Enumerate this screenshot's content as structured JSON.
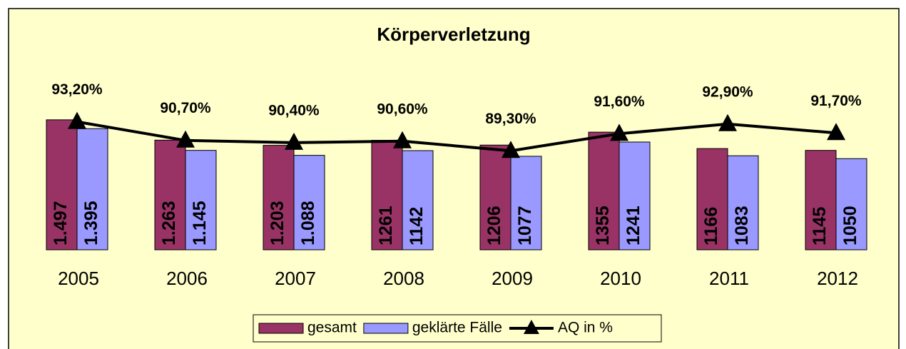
{
  "chart_data": {
    "type": "bar",
    "title": "Körperverletzung",
    "categories": [
      "2005",
      "2006",
      "2007",
      "2008",
      "2009",
      "2010",
      "2011",
      "2012"
    ],
    "series": [
      {
        "name": "gesamt",
        "color": "#993366",
        "values": [
          1497,
          1263,
          1203,
          1261,
          1206,
          1355,
          1166,
          1145
        ],
        "value_labels": [
          "1.497",
          "1.263",
          "1.203",
          "1261",
          "1206",
          "1355",
          "1166",
          "1145"
        ]
      },
      {
        "name": "geklärte Fälle",
        "color": "#9999ff",
        "values": [
          1395,
          1145,
          1088,
          1142,
          1077,
          1241,
          1083,
          1050
        ],
        "value_labels": [
          "1.395",
          "1.145",
          "1.088",
          "1142",
          "1077",
          "1241",
          "1083",
          "1050"
        ]
      },
      {
        "name": "AQ in %",
        "color": "#000000",
        "type": "line",
        "axis": "y2",
        "values": [
          93.2,
          90.7,
          90.4,
          90.6,
          89.3,
          91.6,
          92.9,
          91.7
        ],
        "value_labels": [
          "93,20%",
          "90,70%",
          "90,40%",
          "90,60%",
          "89,30%",
          "91,60%",
          "92,90%",
          "91,70%"
        ]
      }
    ],
    "ylim": [
      0,
      1800
    ],
    "y2lim": [
      76,
      97
    ],
    "legend": "bottom"
  }
}
